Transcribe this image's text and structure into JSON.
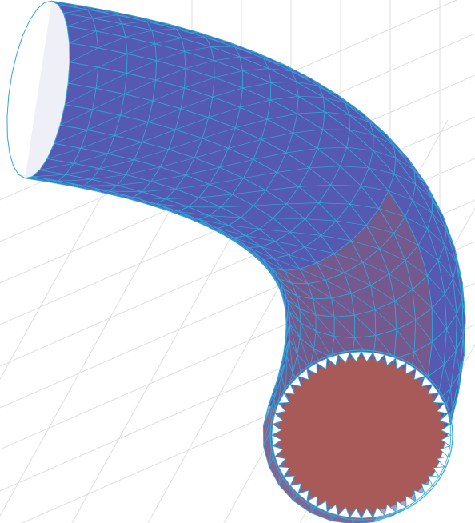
{
  "figure": {
    "kind": "3d-mesh-tube",
    "grid": true,
    "colors": {
      "background": "#ffffff",
      "grid": "#dcdcdc",
      "outer_surface": "#5659b1",
      "inner_surface": "#a85a58",
      "wireframe": "#2ea7d9",
      "interior_highlight": "#d8b8c8"
    }
  }
}
